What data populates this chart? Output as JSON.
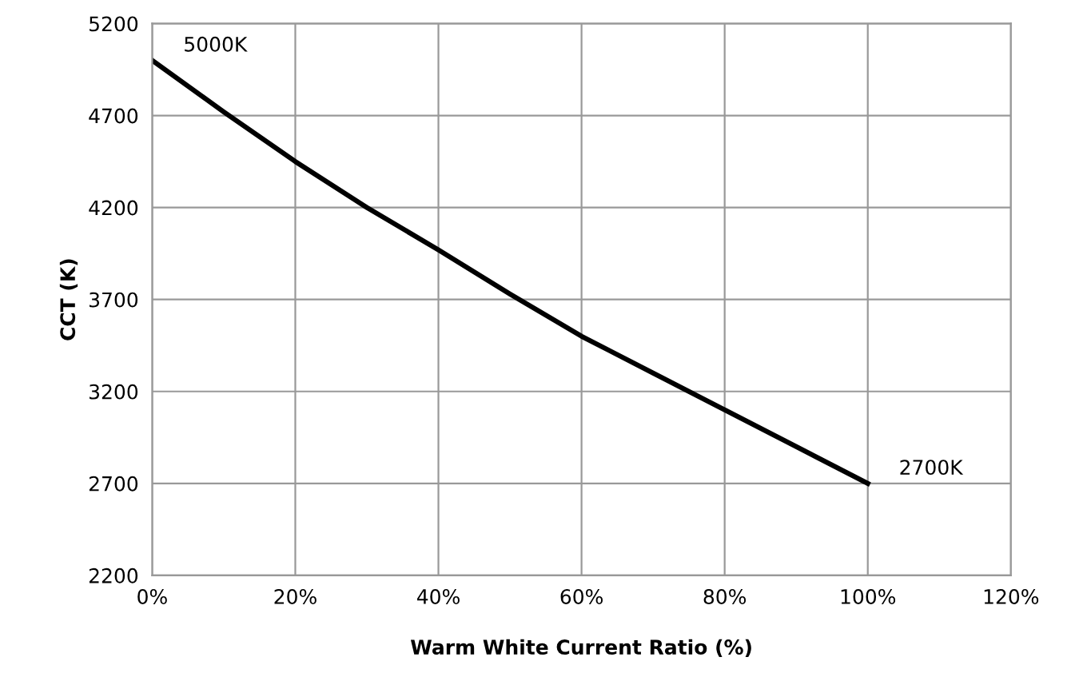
{
  "chart_data": {
    "type": "line",
    "xlabel": "Warm White Current Ratio (%)",
    "ylabel": "CCT (K)",
    "x": [
      0,
      10,
      20,
      30,
      40,
      50,
      60,
      70,
      80,
      90,
      100
    ],
    "series": [
      {
        "color": "#000000",
        "values": [
          5000,
          4720,
          4450,
          4200,
          3970,
          3730,
          3500,
          3300,
          3100,
          2900,
          2700
        ]
      }
    ],
    "xlim": [
      0,
      120
    ],
    "xticks": [
      {
        "value": 0,
        "label": "0%"
      },
      {
        "value": 20,
        "label": "20%"
      },
      {
        "value": 40,
        "label": "40%"
      },
      {
        "value": 60,
        "label": "60%"
      },
      {
        "value": 80,
        "label": "80%"
      },
      {
        "value": 100,
        "label": "100%"
      },
      {
        "value": 120,
        "label": "120%"
      }
    ],
    "ylim": [
      2200,
      5200
    ],
    "yticks": [
      2200,
      2700,
      3200,
      3700,
      4200,
      4700,
      5200
    ],
    "grid": true,
    "marker": "none",
    "line_style": "solid",
    "annotations": [
      {
        "text": "5000K",
        "x": 0,
        "y": 5000
      },
      {
        "text": "2700K",
        "x": 100,
        "y": 2700
      }
    ]
  }
}
